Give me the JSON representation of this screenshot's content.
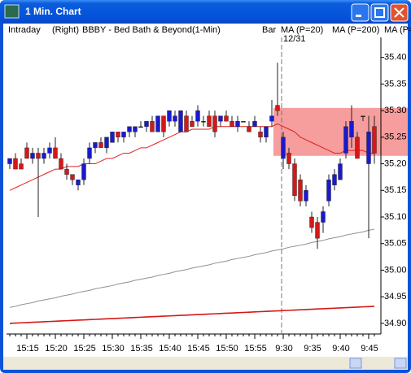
{
  "window": {
    "title": "1 Min. Chart"
  },
  "chart_data": {
    "type": "candlestick",
    "header": [
      "Intraday",
      "(Right)",
      "BBBY - Bed Bath & Beyond",
      "(1-Min)",
      "Bar"
    ],
    "date_label": "12/31",
    "categories": [
      null,
      null,
      null,
      "15:15",
      null,
      null,
      null,
      null,
      "15:20",
      null,
      null,
      null,
      null,
      "15:25",
      null,
      null,
      null,
      null,
      "15:30",
      null,
      null,
      null,
      null,
      "15:35",
      null,
      null,
      null,
      null,
      "15:40",
      null,
      null,
      null,
      null,
      "15:45",
      null,
      null,
      null,
      null,
      "15:50",
      null,
      null,
      null,
      null,
      "15:55",
      null,
      null,
      null,
      null,
      "9:30",
      null,
      null,
      null,
      null,
      "9:35",
      null,
      null,
      null,
      null,
      "9:40",
      null,
      null,
      null,
      null,
      "9:45",
      null
    ],
    "open": [
      35.2,
      35.21,
      35.2,
      35.23,
      35.21,
      35.22,
      35.21,
      35.22,
      35.23,
      35.21,
      35.19,
      35.18,
      35.16,
      35.17,
      35.21,
      35.23,
      35.24,
      35.23,
      35.24,
      35.26,
      35.25,
      35.26,
      35.26,
      35.27,
      35.27,
      35.28,
      35.26,
      35.29,
      35.28,
      35.28,
      35.26,
      35.29,
      35.28,
      35.28,
      35.28,
      35.29,
      35.29,
      35.28,
      35.29,
      35.28,
      35.27,
      35.28,
      35.27,
      35.27,
      35.26,
      35.25,
      35.28,
      35.31,
      35.21,
      35.22,
      35.2,
      35.17,
      35.13,
      35.1,
      35.09,
      35.09,
      35.13,
      35.16,
      35.17,
      35.22,
      35.25,
      35.25,
      35.29,
      35.2,
      35.27
    ],
    "high": [
      35.21,
      35.22,
      35.21,
      35.24,
      35.23,
      35.23,
      35.23,
      35.24,
      35.25,
      35.22,
      35.2,
      35.18,
      35.17,
      35.21,
      35.24,
      35.24,
      35.25,
      35.25,
      35.26,
      35.26,
      35.26,
      35.27,
      35.27,
      35.28,
      35.28,
      35.29,
      35.29,
      35.29,
      35.3,
      35.3,
      35.3,
      35.3,
      35.29,
      35.31,
      35.29,
      35.3,
      35.3,
      35.29,
      35.3,
      35.29,
      35.29,
      35.28,
      35.28,
      35.29,
      35.27,
      35.27,
      35.32,
      35.39,
      35.26,
      35.23,
      35.21,
      35.18,
      35.16,
      35.11,
      35.1,
      35.12,
      35.18,
      35.19,
      35.21,
      35.28,
      35.31,
      35.26,
      35.29,
      35.29,
      35.29
    ],
    "low": [
      35.19,
      35.19,
      35.19,
      35.21,
      35.2,
      35.1,
      35.2,
      35.21,
      35.21,
      35.19,
      35.17,
      35.16,
      35.15,
      35.16,
      35.2,
      35.22,
      35.23,
      35.22,
      35.24,
      35.24,
      35.24,
      35.25,
      35.25,
      35.27,
      35.26,
      35.26,
      35.26,
      35.25,
      35.27,
      35.27,
      35.26,
      35.26,
      35.27,
      35.27,
      35.27,
      35.27,
      35.25,
      35.27,
      35.28,
      35.27,
      35.26,
      35.28,
      35.26,
      35.27,
      35.24,
      35.24,
      35.27,
      35.29,
      35.19,
      35.19,
      35.13,
      35.12,
      35.12,
      35.07,
      35.04,
      35.07,
      35.12,
      35.15,
      35.17,
      35.21,
      35.23,
      35.21,
      35.28,
      35.06,
      35.2
    ],
    "close": [
      35.21,
      35.19,
      35.19,
      35.21,
      35.22,
      35.21,
      35.22,
      35.23,
      35.21,
      35.19,
      35.18,
      35.17,
      35.17,
      35.2,
      35.23,
      35.24,
      35.23,
      35.25,
      35.26,
      35.25,
      35.26,
      35.27,
      35.27,
      35.27,
      35.28,
      35.26,
      35.29,
      35.26,
      35.3,
      35.29,
      35.3,
      35.26,
      35.27,
      35.3,
      35.28,
      35.27,
      35.26,
      35.29,
      35.28,
      35.27,
      35.28,
      35.28,
      35.26,
      35.28,
      35.25,
      35.27,
      35.29,
      35.3,
      35.25,
      35.2,
      35.14,
      35.13,
      35.15,
      35.08,
      35.06,
      35.11,
      35.17,
      35.18,
      35.2,
      35.27,
      35.28,
      35.21,
      35.29,
      35.26,
      35.22
    ],
    "up_color": "#1a1acc",
    "down_color": "#d41818",
    "series": [
      {
        "name": "MA (P=20)",
        "color": "#e02020",
        "values": [
          35.15,
          35.155,
          35.16,
          35.165,
          35.17,
          35.175,
          35.18,
          35.185,
          35.19,
          35.19,
          35.195,
          35.195,
          35.195,
          35.2,
          35.2,
          35.2,
          35.205,
          35.21,
          35.21,
          35.215,
          35.22,
          35.22,
          35.225,
          35.23,
          35.23,
          35.235,
          35.24,
          35.245,
          35.25,
          35.255,
          35.26,
          35.26,
          35.265,
          35.265,
          35.265,
          35.265,
          35.27,
          35.27,
          35.27,
          35.27,
          35.27,
          35.27,
          35.27,
          35.27,
          35.27,
          35.27,
          35.27,
          35.275,
          35.27,
          35.265,
          35.26,
          35.25,
          35.245,
          35.24,
          35.235,
          35.23,
          35.225,
          35.22,
          35.22,
          35.225,
          35.225,
          35.225,
          35.225,
          35.22,
          35.22
        ]
      },
      {
        "name": "MA (P=200)",
        "color": "#909090",
        "values": [
          34.93,
          34.932,
          34.935,
          34.937,
          34.939,
          34.942,
          34.944,
          34.946,
          34.948,
          34.951,
          34.953,
          34.955,
          34.958,
          34.96,
          34.962,
          34.965,
          34.967,
          34.969,
          34.971,
          34.974,
          34.976,
          34.978,
          34.981,
          34.983,
          34.985,
          34.987,
          34.99,
          34.992,
          34.994,
          34.997,
          34.999,
          35.001,
          35.004,
          35.006,
          35.008,
          35.01,
          35.013,
          35.015,
          35.017,
          35.02,
          35.022,
          35.024,
          35.026,
          35.029,
          35.031,
          35.033,
          35.036,
          35.038,
          35.04,
          35.043,
          35.045,
          35.047,
          35.049,
          35.052,
          35.054,
          35.056,
          35.059,
          35.061,
          35.063,
          35.066,
          35.068,
          35.07,
          35.072,
          35.075,
          35.077
        ]
      },
      {
        "name": "MA (P=",
        "color": "#d41818",
        "values": [
          34.9,
          34.9005,
          34.901,
          34.9015,
          34.902,
          34.9025,
          34.903,
          34.9035,
          34.904,
          34.9045,
          34.905,
          34.9055,
          34.906,
          34.9065,
          34.907,
          34.9075,
          34.908,
          34.9085,
          34.909,
          34.9095,
          34.91,
          34.9105,
          34.911,
          34.9115,
          34.912,
          34.9125,
          34.913,
          34.9135,
          34.914,
          34.9145,
          34.915,
          34.9155,
          34.916,
          34.9165,
          34.917,
          34.9175,
          34.918,
          34.9185,
          34.919,
          34.9195,
          34.92,
          34.9205,
          34.921,
          34.9215,
          34.922,
          34.9225,
          34.923,
          34.9235,
          34.924,
          34.9245,
          34.925,
          34.9255,
          34.926,
          34.9265,
          34.927,
          34.9275,
          34.928,
          34.9285,
          34.929,
          34.9295,
          34.93,
          34.9305,
          34.931,
          34.9315,
          34.932
        ]
      }
    ],
    "zone": {
      "ylim": [
        35.215,
        35.305
      ],
      "color": "#f58c8c"
    },
    "ylim": [
      34.88,
      35.43
    ],
    "yticks": [
      {
        "value": 34.9,
        "label": "34.90"
      },
      34.95,
      {
        "value": 35.0,
        "label": "35.00"
      },
      35.05,
      {
        "value": 35.1,
        "label": "35.10"
      },
      35.15,
      {
        "value": 35.2,
        "label": "35.20"
      },
      35.25,
      {
        "value": 35.3,
        "label": "35.30"
      },
      35.35,
      {
        "value": 35.4,
        "label": "35.40"
      }
    ]
  }
}
